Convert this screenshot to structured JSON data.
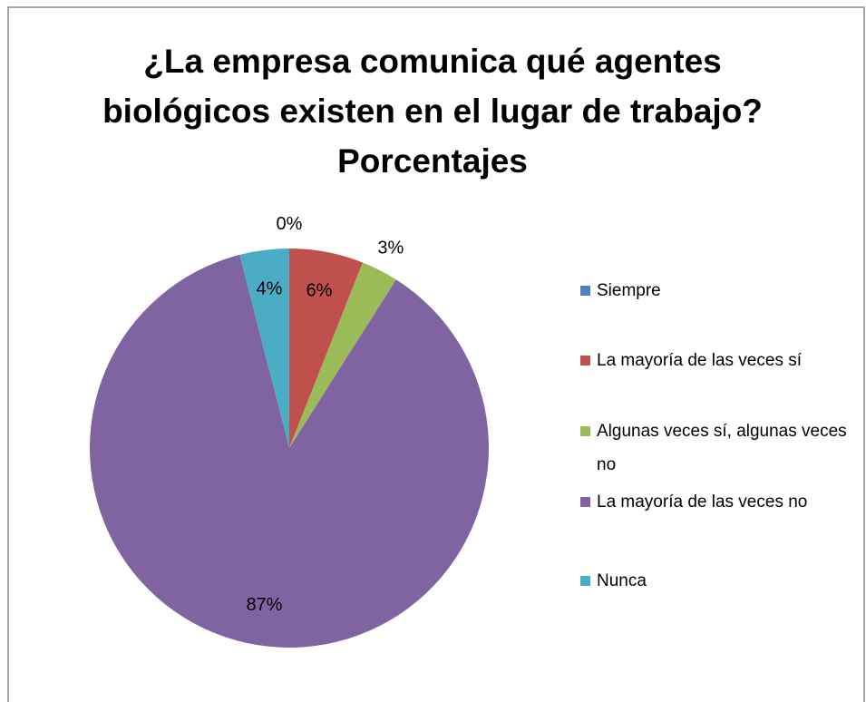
{
  "chart_data": {
    "type": "pie",
    "title": "¿La empresa comunica qué agentes biológicos existen en el lugar de trabajo? Porcentajes",
    "categories": [
      "Siempre",
      "La mayoría de las veces sí",
      "Algunas veces sí, algunas veces no",
      "La mayoría de las veces no",
      "Nunca"
    ],
    "values": [
      0,
      6,
      3,
      87,
      4
    ],
    "value_labels": [
      "0%",
      "6%",
      "3%",
      "87%",
      "4%"
    ],
    "colors": [
      "#4f81bd",
      "#c0504d",
      "#9bbb59",
      "#8064a2",
      "#4bacc6"
    ],
    "legend": "right"
  }
}
